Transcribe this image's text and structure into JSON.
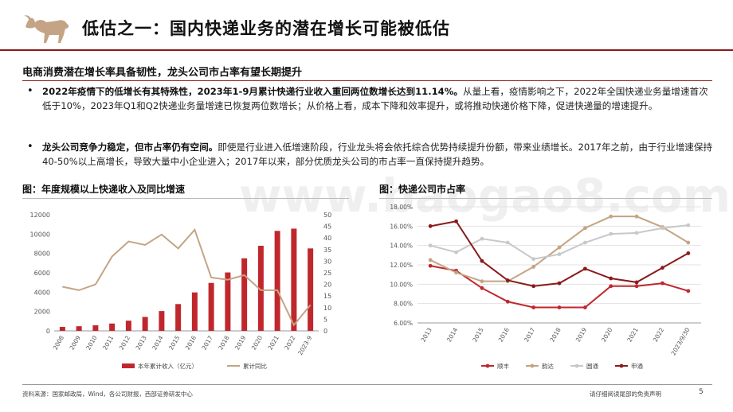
{
  "page": {
    "title": "低估之一：国内快递业务的潜在增长可能被低估",
    "subtitle": "电商消费潜在增长率具备韧性，龙头公司市占率有望长期提升",
    "watermark": "www.baogao8.com",
    "source": "资料来源：国家邮政局，Wind，各公司财报，西部证券研发中心",
    "disclaimer": "请仔细阅读尾部的免责声明",
    "page_number": "5"
  },
  "bullets": [
    {
      "bold": "2022年疫情下的低增长有其特殊性，2023年1-9月累计快递行业收入重回两位数增长达到11.14%。",
      "text": "从量上看，疫情影响之下，2022年全国快递业务量增速首次低于10%，2023年Q1和Q2快递业务量增速已恢复两位数增长；从价格上看，成本下降和效率提升，或将推动快递价格下降，促进快递量的增速提升。"
    },
    {
      "bold": "龙头公司竞争力稳定，但市占率仍有空间。",
      "text": "即使是行业进入低增速阶段，行业龙头将会依托综合优势持续提升份额，带来业绩增长。2017年之前，由于行业增速保持40-50%以上高增长，导致大量中小企业进入；2017年以来，部分优质龙头公司的市占率一直保持提升趋势。"
    }
  ],
  "chart_data": [
    {
      "type": "bar",
      "title": "图：年度规模以上快递收入及同比增速",
      "categories": [
        "2008",
        "2009",
        "2010",
        "2011",
        "2012",
        "2013",
        "2014",
        "2015",
        "2016",
        "2017",
        "2018",
        "2019",
        "2020",
        "2021",
        "2022",
        "2023-9"
      ],
      "series": [
        {
          "name": "本年累计收入（亿元）",
          "type": "bar",
          "axis": "left",
          "color": "#c0272d",
          "values": [
            408,
            479,
            575,
            758,
            1055,
            1442,
            2045,
            2770,
            3974,
            4957,
            6038,
            7498,
            8795,
            10332,
            10566,
            8520
          ]
        },
        {
          "name": "累计同比",
          "type": "line",
          "axis": "right",
          "color": "#c4a484",
          "values": [
            19,
            17.5,
            20,
            32,
            38.5,
            37,
            41.5,
            35.5,
            43.5,
            23,
            22,
            24,
            17.5,
            17.5,
            2.5,
            11.14
          ]
        }
      ],
      "ylim_left": [
        0,
        12000
      ],
      "yticks_left": [
        0,
        2000,
        4000,
        6000,
        8000,
        10000,
        12000
      ],
      "ylim_right": [
        0,
        50
      ],
      "yticks_right": [
        0,
        5,
        10,
        15,
        20,
        25,
        30,
        35,
        40,
        45,
        50
      ],
      "legend": "bottom"
    },
    {
      "type": "line",
      "title": "图：快递公司市占率",
      "categories": [
        "2013",
        "2014",
        "2015",
        "2016",
        "2017",
        "2018",
        "2019",
        "2020",
        "2021",
        "2022",
        "2023/9/30"
      ],
      "series": [
        {
          "name": "顺丰",
          "color": "#c0272d",
          "values": [
            11.9,
            11.4,
            9.6,
            8.2,
            7.6,
            7.6,
            7.6,
            9.8,
            9.8,
            10.1,
            9.3
          ]
        },
        {
          "name": "韵达",
          "color": "#c4a484",
          "values": [
            12.5,
            11.2,
            10.3,
            10.3,
            11.8,
            13.8,
            15.8,
            17.0,
            17.0,
            15.9,
            14.3
          ]
        },
        {
          "name": "圆通",
          "color": "#c8c8c8",
          "values": [
            14.0,
            13.3,
            14.7,
            14.3,
            12.6,
            13.1,
            14.3,
            15.2,
            15.3,
            15.8,
            16.1
          ]
        },
        {
          "name": "申通",
          "color": "#8b1a1a",
          "values": [
            16.0,
            16.5,
            12.4,
            10.4,
            9.8,
            10.1,
            11.6,
            10.6,
            10.2,
            11.7,
            13.2
          ]
        }
      ],
      "ylim": [
        6.0,
        18.0
      ],
      "yticks": [
        "6.00%",
        "8.00%",
        "10.00%",
        "12.00%",
        "14.00%",
        "16.00%",
        "18.00%"
      ],
      "legend": "bottom"
    }
  ]
}
